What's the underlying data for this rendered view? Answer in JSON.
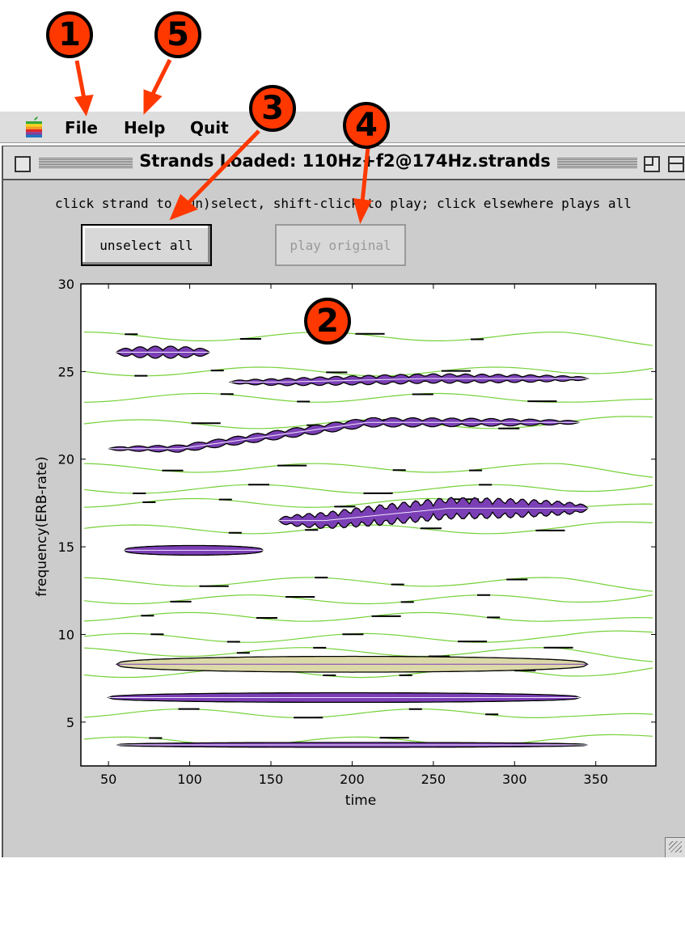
{
  "menu": {
    "file": "File",
    "help": "Help",
    "quit": "Quit"
  },
  "window": {
    "title": "Strands Loaded: 110Hz+f2@174Hz.strands"
  },
  "instructions": "click strand to (un)select, shift-click to play; click elsewhere plays all",
  "buttons": {
    "unselect_all": "unselect all",
    "play_original": "play original"
  },
  "badges": [
    "1",
    "5",
    "3",
    "4",
    "2"
  ],
  "colors": {
    "selected_strand": "#7b3fb5",
    "unselected_strand": "#dcd9a8",
    "trace": "#66cc22",
    "badge": "#ff3800"
  },
  "chart_data": {
    "type": "scatter",
    "xlabel": "time",
    "ylabel": "frequency(ERB-rate)",
    "xlim": [
      33,
      387
    ],
    "ylim": [
      2.5,
      30
    ],
    "xticks": [
      50,
      100,
      150,
      200,
      250,
      300,
      350
    ],
    "yticks": [
      5,
      10,
      15,
      20,
      25,
      30
    ],
    "strands": [
      {
        "x": [
          55,
          112
        ],
        "y": 26.1,
        "amp": 0.7,
        "selected": true,
        "pulses": 6
      },
      {
        "x": [
          125,
          345
        ],
        "y": 24.4,
        "y_end": 24.6,
        "amp": 0.55,
        "selected": true,
        "pulses": 22
      },
      {
        "x": [
          50,
          340
        ],
        "y": 20.6,
        "y_end": 22.1,
        "amp": 0.55,
        "selected": true,
        "pulses": 24
      },
      {
        "x": [
          155,
          345
        ],
        "y": 16.5,
        "y_end": 17.2,
        "amp": 1.25,
        "selected": true,
        "pulses": 26
      },
      {
        "x": [
          60,
          145
        ],
        "y": 14.8,
        "amp": 0.55,
        "selected": true
      },
      {
        "x": [
          50,
          340
        ],
        "y": 6.4,
        "amp": 0.55,
        "selected": true
      },
      {
        "x": [
          55,
          345
        ],
        "y": 3.7,
        "amp": 0.28,
        "selected": true
      },
      {
        "x": [
          55,
          345
        ],
        "y": 8.3,
        "amp": 0.9,
        "selected": false
      }
    ]
  }
}
